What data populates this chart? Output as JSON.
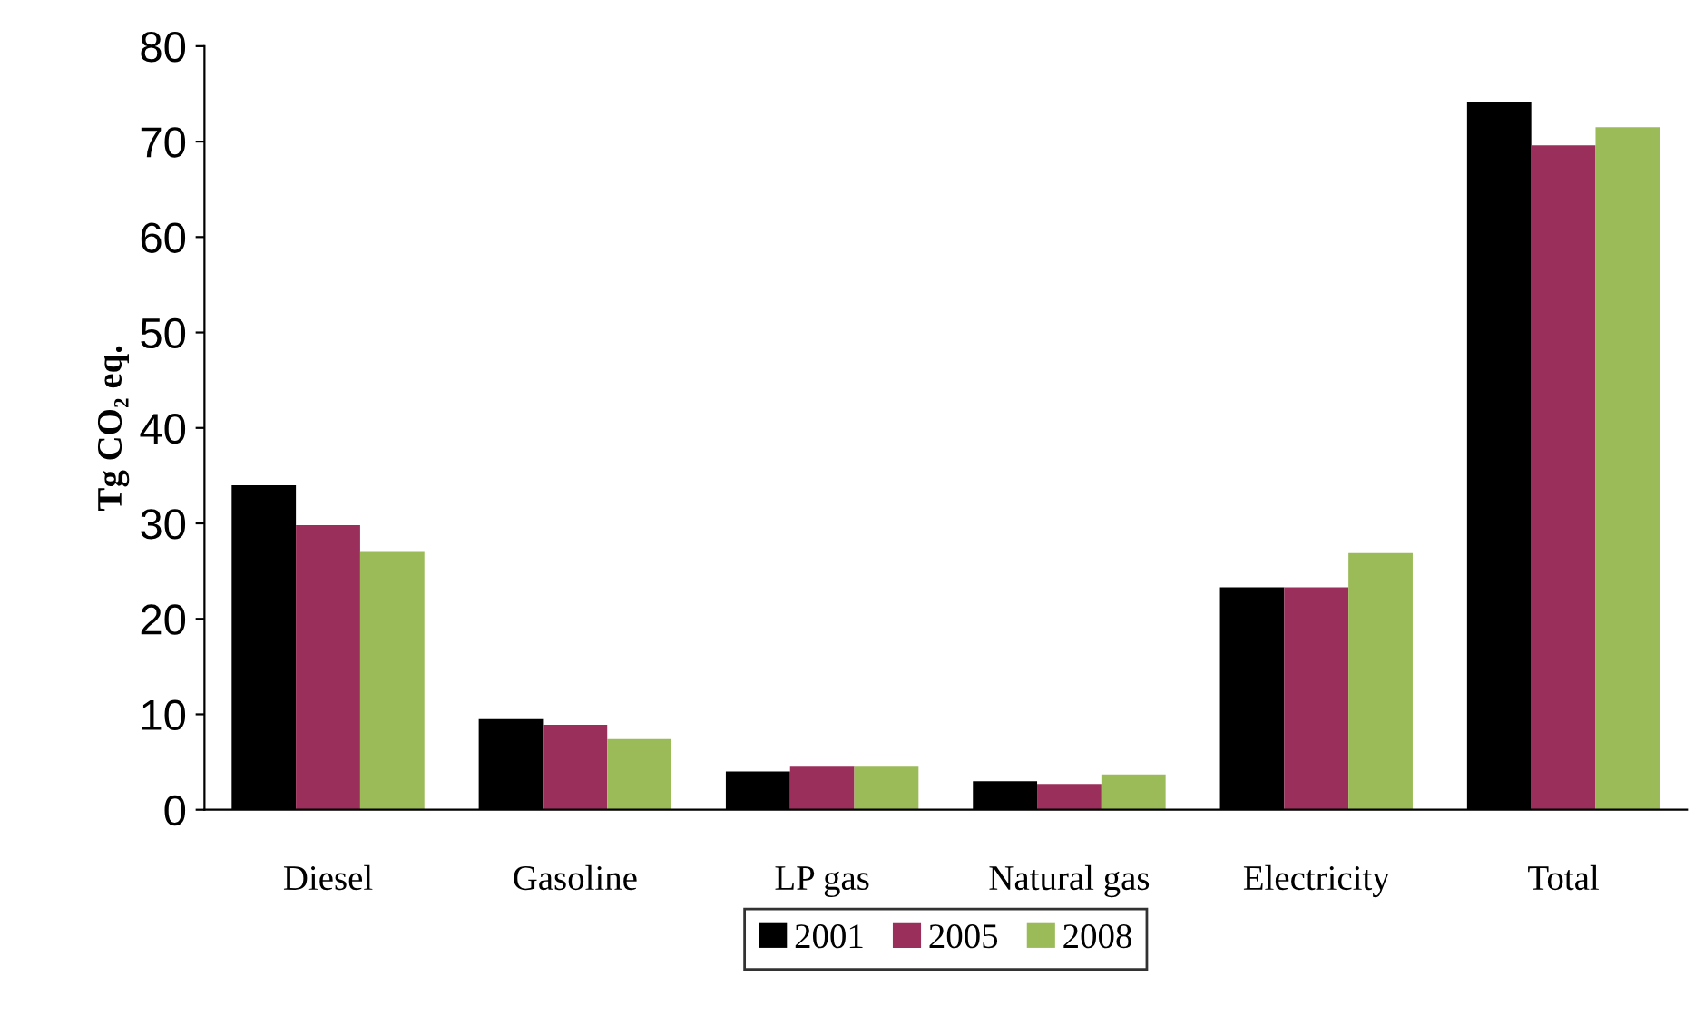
{
  "chart_data": {
    "type": "bar",
    "ylabel": "Tg CO₂ eq.",
    "categories": [
      "Diesel",
      "Gasoline",
      "LP gas",
      "Natural gas",
      "Electricity",
      "Total"
    ],
    "series": [
      {
        "name": "2001",
        "color": "#000000",
        "values": [
          34,
          9.5,
          4,
          3,
          23.3,
          74.1
        ]
      },
      {
        "name": "2005",
        "color": "#9b2f5b",
        "values": [
          29.8,
          8.9,
          4.5,
          2.7,
          23.3,
          69.6
        ]
      },
      {
        "name": "2008",
        "color": "#9bbb59",
        "values": [
          27.1,
          7.4,
          4.5,
          3.7,
          26.9,
          71.5
        ]
      }
    ],
    "ylim": [
      0,
      80
    ],
    "yticks": [
      0,
      10,
      20,
      30,
      40,
      50,
      60,
      70,
      80
    ],
    "grid": false,
    "legend": "bottom"
  }
}
